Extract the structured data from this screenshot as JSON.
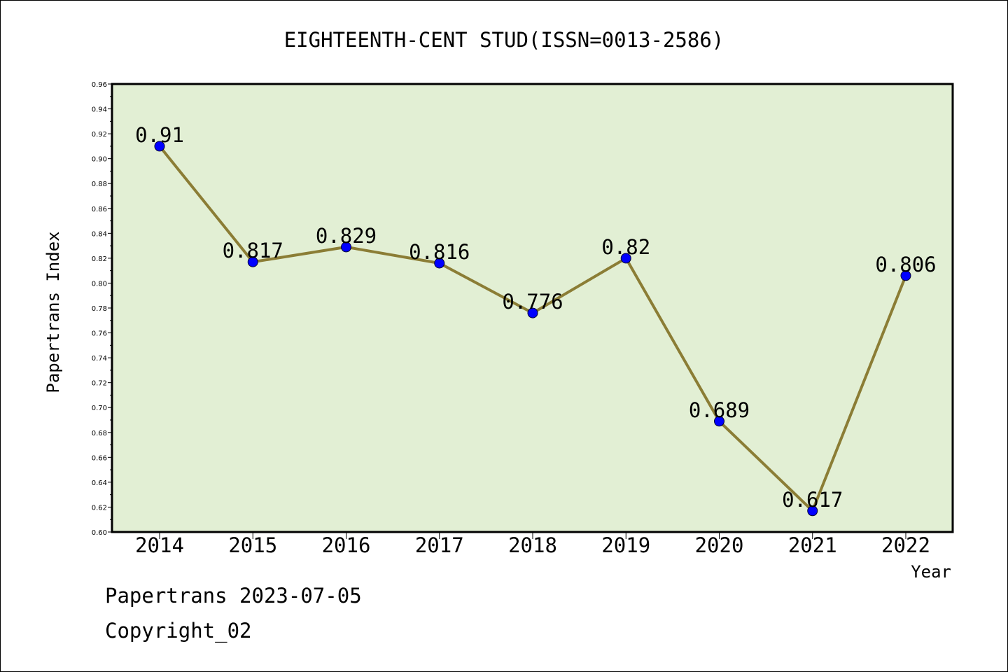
{
  "chart_data": {
    "type": "line",
    "title": "EIGHTEENTH-CENT STUD(ISSN=0013-2586)",
    "xlabel": "Year",
    "ylabel": "Papertrans Index",
    "ylim": [
      0.6,
      0.96
    ],
    "ytick_step": 0.02,
    "categories": [
      "2014",
      "2015",
      "2016",
      "2017",
      "2018",
      "2019",
      "2020",
      "2021",
      "2022"
    ],
    "series": [
      {
        "values": [
          0.91,
          0.817,
          0.829,
          0.816,
          0.776,
          0.82,
          0.689,
          0.617,
          0.806
        ],
        "labels": [
          "0.91",
          "0.817",
          "0.829",
          "0.816",
          "0.776",
          "0.82",
          "0.689",
          "0.617",
          "0.806"
        ]
      }
    ],
    "grid": false,
    "legend": "none",
    "colors": {
      "plot_background": "#e2efd4",
      "line": "#8b7d35",
      "marker": "#0000ff",
      "axis": "#000000"
    }
  },
  "footer": {
    "line1": "Papertrans 2023-07-05",
    "line2": "Copyright_02"
  }
}
